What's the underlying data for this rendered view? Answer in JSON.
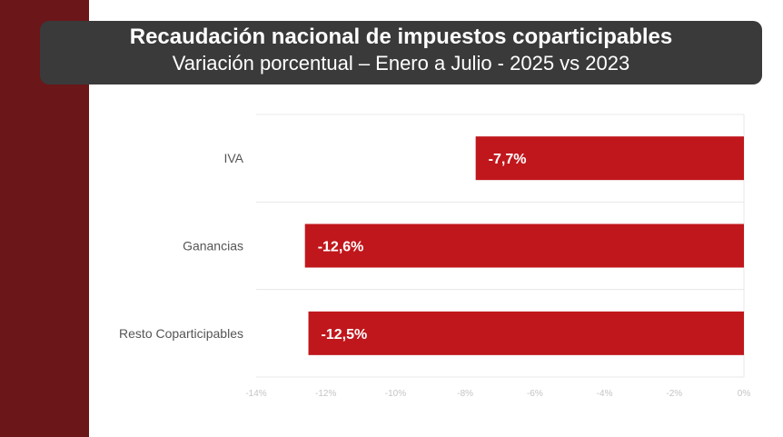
{
  "title": "Recaudación nacional de impuestos coparticipables",
  "subtitle": "Variación porcentual – Enero a Julio - 2025 vs 2023",
  "colors": {
    "stripe": "#6b1619",
    "bar": "#c0171c",
    "title_bg": "#3a3a3a"
  },
  "chart_data": {
    "type": "bar",
    "orientation": "horizontal",
    "categories": [
      "IVA",
      "Ganancias",
      "Resto Coparticipables"
    ],
    "values": [
      -7.7,
      -12.6,
      -12.5
    ],
    "data_labels": [
      "-7,7%",
      "-12,6%",
      "-12,5%"
    ],
    "xlim": [
      -14,
      0
    ],
    "xticks": [
      -14,
      -12,
      -10,
      -8,
      -6,
      -4,
      -2,
      0
    ],
    "xtick_labels": [
      "-14%",
      "-12%",
      "-10%",
      "-8%",
      "-6%",
      "-4%",
      "-2%",
      "0%"
    ],
    "grid": "horizontal row separators",
    "legend": "none"
  }
}
